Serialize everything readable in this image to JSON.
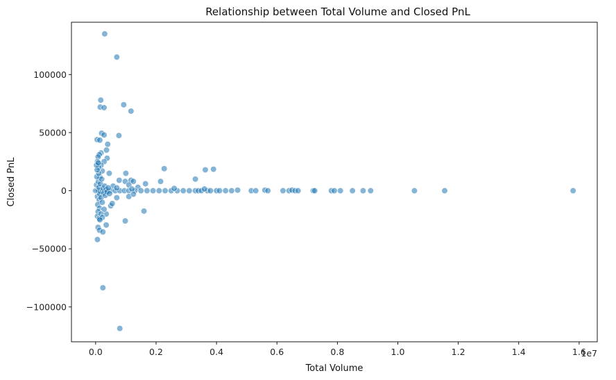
{
  "chart_data": {
    "type": "scatter",
    "title": "Relationship between Total Volume and Closed PnL",
    "xlabel": "Total Volume",
    "ylabel": "Closed PnL",
    "x_offset_label": "1e7",
    "xlim": [
      -800000,
      16600000
    ],
    "ylim": [
      -130000,
      145000
    ],
    "xticks": [
      0,
      2000000,
      4000000,
      6000000,
      8000000,
      10000000,
      12000000,
      14000000,
      16000000
    ],
    "xtick_labels": [
      "0.0",
      "0.2",
      "0.4",
      "0.6",
      "0.8",
      "1.0",
      "1.2",
      "1.4",
      "1.6"
    ],
    "yticks": [
      -100000,
      -50000,
      0,
      50000,
      100000
    ],
    "ytick_labels": [
      "−100000",
      "−50000",
      "0",
      "50000",
      "100000"
    ],
    "grid": false,
    "marker_color": "#1f77b4",
    "series": [
      {
        "points": [
          [
            300000,
            135000
          ],
          [
            700000,
            115000
          ],
          [
            170000,
            78000
          ],
          [
            150000,
            72000
          ],
          [
            280000,
            71500
          ],
          [
            930000,
            74000
          ],
          [
            1170000,
            68500
          ],
          [
            200000,
            49500
          ],
          [
            280000,
            48000
          ],
          [
            770000,
            47500
          ],
          [
            50000,
            44000
          ],
          [
            140000,
            43500
          ],
          [
            400000,
            40000
          ],
          [
            360000,
            35000
          ],
          [
            180000,
            32500
          ],
          [
            120000,
            31000
          ],
          [
            80000,
            29000
          ],
          [
            380000,
            28000
          ],
          [
            280000,
            25000
          ],
          [
            60000,
            25000
          ],
          [
            2270000,
            19000
          ],
          [
            3630000,
            18000
          ],
          [
            3900000,
            18500
          ],
          [
            1000000,
            15000
          ],
          [
            450000,
            15000
          ],
          [
            180000,
            22000
          ],
          [
            220000,
            17000
          ],
          [
            100000,
            20000
          ],
          [
            140000,
            12000
          ],
          [
            3300000,
            10000
          ],
          [
            780000,
            9000
          ],
          [
            1170000,
            9000
          ],
          [
            1250000,
            8000
          ],
          [
            980000,
            8000
          ],
          [
            2150000,
            8000
          ],
          [
            1100000,
            5000
          ],
          [
            1650000,
            6000
          ],
          [
            580000,
            4000
          ],
          [
            1400000,
            3000
          ],
          [
            -10000,
            0
          ],
          [
            20000,
            0
          ],
          [
            60000,
            0
          ],
          [
            100000,
            0
          ],
          [
            150000,
            0
          ],
          [
            220000,
            0
          ],
          [
            300000,
            0
          ],
          [
            400000,
            0
          ],
          [
            500000,
            0
          ],
          [
            650000,
            0
          ],
          [
            800000,
            0
          ],
          [
            950000,
            0
          ],
          [
            1100000,
            0
          ],
          [
            1300000,
            0
          ],
          [
            1500000,
            0
          ],
          [
            1700000,
            0
          ],
          [
            1900000,
            0
          ],
          [
            2100000,
            0
          ],
          [
            2300000,
            0
          ],
          [
            2500000,
            0
          ],
          [
            2700000,
            0
          ],
          [
            2900000,
            0
          ],
          [
            3100000,
            0
          ],
          [
            3300000,
            0
          ],
          [
            3400000,
            0
          ],
          [
            3500000,
            0
          ],
          [
            3700000,
            0
          ],
          [
            3800000,
            0
          ],
          [
            4000000,
            0
          ],
          [
            4100000,
            0
          ],
          [
            4300000,
            0
          ],
          [
            4500000,
            0
          ],
          [
            4700000,
            500
          ],
          [
            5150000,
            0
          ],
          [
            5300000,
            0
          ],
          [
            5600000,
            500
          ],
          [
            5700000,
            0
          ],
          [
            6200000,
            0
          ],
          [
            6400000,
            0
          ],
          [
            6500000,
            500
          ],
          [
            6600000,
            0
          ],
          [
            6700000,
            0
          ],
          [
            7200000,
            0
          ],
          [
            7250000,
            0
          ],
          [
            7800000,
            0
          ],
          [
            7900000,
            0
          ],
          [
            8100000,
            0
          ],
          [
            8500000,
            0
          ],
          [
            8850000,
            0
          ],
          [
            9100000,
            0
          ],
          [
            10550000,
            0
          ],
          [
            11550000,
            0
          ],
          [
            15800000,
            0
          ],
          [
            2600000,
            2000
          ],
          [
            3600000,
            1500
          ],
          [
            1200000,
            1500
          ],
          [
            700000,
            2500
          ],
          [
            30000,
            5000
          ],
          [
            60000,
            -5000
          ],
          [
            90000,
            8000
          ],
          [
            120000,
            -8000
          ],
          [
            40000,
            12000
          ],
          [
            70000,
            -12000
          ],
          [
            100000,
            15000
          ],
          [
            130000,
            -15000
          ],
          [
            50000,
            18000
          ],
          [
            80000,
            -18000
          ],
          [
            110000,
            3000
          ],
          [
            140000,
            -3000
          ],
          [
            160000,
            6000
          ],
          [
            180000,
            -6000
          ],
          [
            200000,
            10000
          ],
          [
            220000,
            -10000
          ],
          [
            250000,
            2000
          ],
          [
            270000,
            -2000
          ],
          [
            300000,
            4000
          ],
          [
            320000,
            -4000
          ],
          [
            350000,
            1000
          ],
          [
            380000,
            -1000
          ],
          [
            420000,
            2500
          ],
          [
            460000,
            -2500
          ],
          [
            30000,
            22000
          ],
          [
            60000,
            -22000
          ],
          [
            90000,
            24000
          ],
          [
            120000,
            -24000
          ],
          [
            1100000,
            -5000
          ],
          [
            1250000,
            -3000
          ],
          [
            700000,
            -6000
          ],
          [
            1600000,
            -17500
          ],
          [
            500000,
            -13000
          ],
          [
            550000,
            -11000
          ],
          [
            350000,
            -20000
          ],
          [
            280000,
            -16000
          ],
          [
            180000,
            -20000
          ],
          [
            220000,
            -23000
          ],
          [
            140000,
            -25000
          ],
          [
            350000,
            -29500
          ],
          [
            80000,
            -31500
          ],
          [
            130000,
            -34000
          ],
          [
            240000,
            -35500
          ],
          [
            980000,
            -26000
          ],
          [
            60000,
            -42000
          ],
          [
            240000,
            -83500
          ],
          [
            800000,
            -118500
          ]
        ]
      }
    ]
  }
}
